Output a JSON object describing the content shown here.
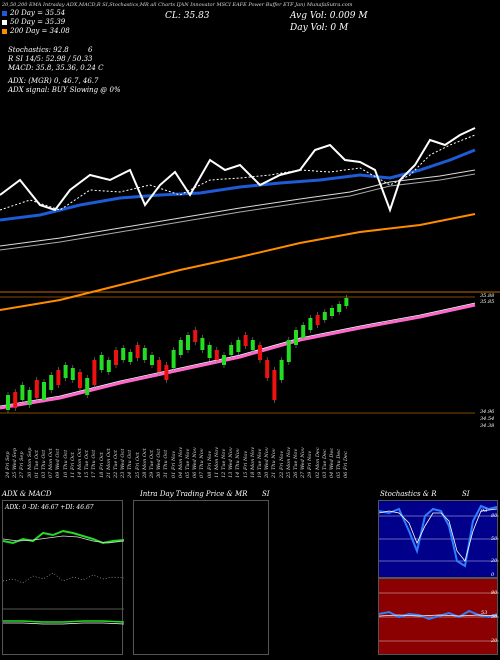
{
  "header": {
    "line1": "20,50,200  EMA  Intraday ADX,MACD,R     SI,Stochastics,MR     all Charts IJAN     Innovator MSCI EAFE Power Buffer ETF Jan) MunafaSutra.com",
    "cl_label": "CL: 35.83",
    "legend": [
      {
        "label": "20  Day = 35.54",
        "color": "#1e5bd6"
      },
      {
        "label": "50  Day = 35.39",
        "color": "#ffffff"
      },
      {
        "label": "200  Day = 34.08",
        "color": "#ff8c00"
      }
    ],
    "stochastics": "Stochastics: 92.8",
    "stoch_val": "6",
    "rsi": "R     SI 14/5: 52.98  / 50.33",
    "macd": "MACD: 35.8, 35.36,  0.24   C",
    "adx": "ADX:                         (MGR) 0,  46.7,  46.7",
    "adx_signal": "ADX signal:                                      BUY Slowing @ 0%",
    "avg_vol": "Avg Vol: 0.009  M",
    "day_vol": "Day Vol: 0   M"
  },
  "price_axis": {
    "top_a": "35.88",
    "top_b": "35.85",
    "low_a": "34.96",
    "low_b": "34.54",
    "low_c": "34.38"
  },
  "dates": [
    "24 Fri Sep",
    "25 Wed Sep",
    "27 Fri Sep",
    "30 Mon Sep",
    "01 Tue Oct",
    "03 Thu Oct",
    "07 Mon Oct",
    "09 Wed Oct",
    "10 Thu Oct",
    "11 Fri Oct",
    "14 Mon Oct",
    "15 Tue Oct",
    "17 Thu Oct",
    "18 Fri Oct",
    "21 Mon Oct",
    "22 Tue Oct",
    "23 Wed Oct",
    "24 Thu Oct",
    "25 Fri Oct",
    "28 Mon Oct",
    "29 Tue Oct",
    "30 Wed Oct",
    "31 Thu Oct",
    "01 Fri Nov",
    "04 Mon Nov",
    "05 Tue Nov",
    "06 Wed Nov",
    "07 Thu Nov",
    "08 Fri Nov",
    "11 Mon Nov",
    "12 Tue Nov",
    "13 Wed Nov",
    "14 Thu Nov",
    "15 Fri Nov",
    "18 Mon Nov",
    "19 Tue Nov",
    "20 Wed Nov",
    "21 Thu Nov",
    "22 Fri Nov",
    "25 Mon Nov",
    "26 Tue Nov",
    "27 Wed Nov",
    "29 Fri Nov",
    "02 Mon Dec",
    "03 Tue Dec",
    "04 Wed Dec",
    "05 Thu Dec",
    "06 Fri Dec"
  ],
  "panels": {
    "adx_title": "ADX  & MACD",
    "adx_readout": "ADX: 0    -DI: 46.67  +DI: 46.67",
    "intra_title": "Intra  Day Trading Price  & MR",
    "intra_si": "SI",
    "stoch_title": "Stochastics & R",
    "stoch_si": "SI",
    "stoch_ticks": [
      "80",
      "50",
      "20",
      "0"
    ],
    "stoch_value": "93",
    "rsi_ticks": [
      "80",
      "50",
      "20"
    ],
    "rsi_value": "53"
  },
  "colors": {
    "ema20": "#1e5bd6",
    "ema50": "#ffffff",
    "ema200": "#ff8c00",
    "up": "#22dd22",
    "down": "#ee1111",
    "rsi_bg": "#8b0000"
  }
}
